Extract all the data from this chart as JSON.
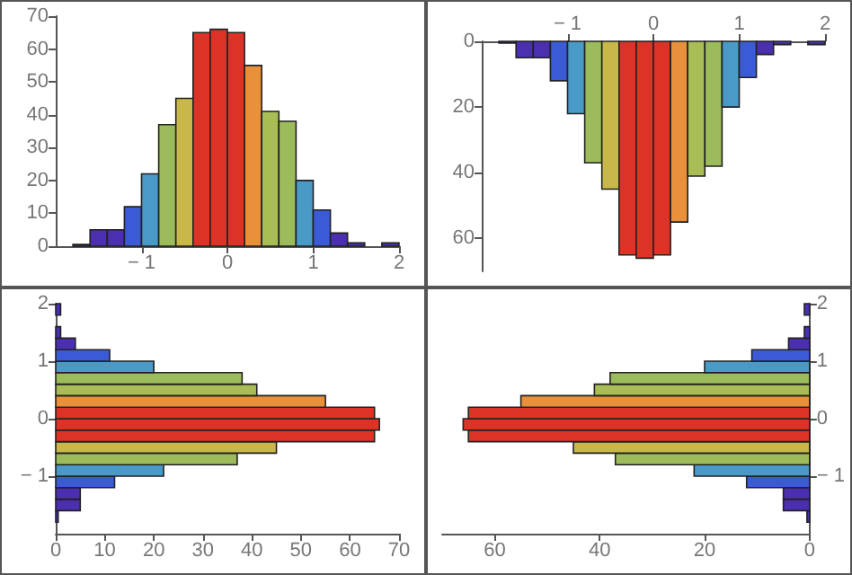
{
  "chart_data": [
    {
      "type": "histogram",
      "bins": [
        -2,
        -1.8,
        -1.6,
        -1.4,
        -1.2,
        -1,
        -0.8,
        -0.6,
        -0.4,
        -0.2,
        0,
        0.2,
        0.4,
        0.6,
        0.8,
        1,
        1.2,
        1.4,
        1.6,
        1.8,
        2
      ],
      "values": [
        0,
        0.5,
        5,
        5,
        12,
        22,
        37,
        45,
        65,
        66,
        65,
        55,
        41,
        38,
        20,
        11,
        4,
        1,
        0,
        1
      ],
      "colors": [
        null,
        "#4a2fb0",
        "#4a2fb0",
        "#4a2fb0",
        "#3b5bd6",
        "#4a9ac8",
        "#9cbb5a",
        "#c8b84a",
        "#dd3326",
        "#dd3326",
        "#dd3326",
        "#e8903a",
        "#a9bd55",
        "#9cbb5a",
        "#4a9ac8",
        "#3b5bd6",
        "#4a2fb0",
        "#4a2fb0",
        null,
        "#4a2fb0"
      ],
      "xlim": [
        -2,
        2
      ],
      "xticks": [
        {
          "value": -1,
          "label": "− 1"
        },
        0,
        1,
        2
      ],
      "ylim": [
        0,
        70
      ],
      "yticks": [
        0,
        10,
        20,
        30,
        40,
        50,
        60,
        70
      ]
    },
    {
      "type": "histogram",
      "bins": [
        -2,
        -1.8,
        -1.6,
        -1.4,
        -1.2,
        -1,
        -0.8,
        -0.6,
        -0.4,
        -0.2,
        0,
        0.2,
        0.4,
        0.6,
        0.8,
        1,
        1.2,
        1.4,
        1.6,
        1.8,
        2
      ],
      "values": [
        0,
        0.5,
        5,
        5,
        12,
        22,
        37,
        45,
        65,
        66,
        65,
        55,
        41,
        38,
        20,
        11,
        4,
        1,
        0,
        1
      ],
      "colors": [
        null,
        "#4a2fb0",
        "#4a2fb0",
        "#4a2fb0",
        "#3b5bd6",
        "#4a9ac8",
        "#9cbb5a",
        "#c8b84a",
        "#dd3326",
        "#dd3326",
        "#dd3326",
        "#e8903a",
        "#a9bd55",
        "#9cbb5a",
        "#4a9ac8",
        "#3b5bd6",
        "#4a2fb0",
        "#4a2fb0",
        null,
        "#4a2fb0"
      ],
      "xlim": [
        -2,
        2
      ],
      "xticks": [
        {
          "value": -1,
          "label": "− 1"
        },
        0,
        1,
        2
      ],
      "ylim": [
        70,
        0
      ],
      "yticks": [
        0,
        20,
        40,
        60
      ]
    },
    {
      "type": "histogram",
      "orientation": "horizontal",
      "bins": [
        -2,
        -1.8,
        -1.6,
        -1.4,
        -1.2,
        -1,
        -0.8,
        -0.6,
        -0.4,
        -0.2,
        0,
        0.2,
        0.4,
        0.6,
        0.8,
        1,
        1.2,
        1.4,
        1.6,
        1.8,
        2
      ],
      "values": [
        0,
        0.5,
        5,
        5,
        12,
        22,
        37,
        45,
        65,
        66,
        65,
        55,
        41,
        38,
        20,
        11,
        4,
        1,
        0,
        1
      ],
      "colors": [
        null,
        "#4a2fb0",
        "#4a2fb0",
        "#4a2fb0",
        "#3b5bd6",
        "#4a9ac8",
        "#9cbb5a",
        "#c8b84a",
        "#dd3326",
        "#dd3326",
        "#dd3326",
        "#e8903a",
        "#a9bd55",
        "#9cbb5a",
        "#4a9ac8",
        "#3b5bd6",
        "#4a2fb0",
        "#4a2fb0",
        null,
        "#4a2fb0"
      ],
      "xlim": [
        0,
        70
      ],
      "xticks": [
        0,
        10,
        20,
        30,
        40,
        50,
        60,
        70
      ],
      "ylim": [
        -2,
        2
      ],
      "yticks": [
        {
          "value": -1,
          "label": "− 1"
        },
        0,
        1,
        2
      ]
    },
    {
      "type": "histogram",
      "orientation": "horizontal",
      "bins": [
        -2,
        -1.8,
        -1.6,
        -1.4,
        -1.2,
        -1,
        -0.8,
        -0.6,
        -0.4,
        -0.2,
        0,
        0.2,
        0.4,
        0.6,
        0.8,
        1,
        1.2,
        1.4,
        1.6,
        1.8,
        2
      ],
      "values": [
        0,
        0.5,
        5,
        5,
        12,
        22,
        37,
        45,
        65,
        66,
        65,
        55,
        41,
        38,
        20,
        11,
        4,
        1,
        0,
        1
      ],
      "colors": [
        null,
        "#4a2fb0",
        "#4a2fb0",
        "#4a2fb0",
        "#3b5bd6",
        "#4a9ac8",
        "#9cbb5a",
        "#c8b84a",
        "#dd3326",
        "#dd3326",
        "#dd3326",
        "#e8903a",
        "#a9bd55",
        "#9cbb5a",
        "#4a9ac8",
        "#3b5bd6",
        "#4a2fb0",
        "#4a2fb0",
        null,
        "#4a2fb0"
      ],
      "xlim": [
        70,
        0
      ],
      "xticks": [
        0,
        20,
        40,
        60
      ],
      "ylim": [
        -2,
        2
      ],
      "yticks": [
        {
          "value": -1,
          "label": "− 1"
        },
        0,
        1,
        2
      ]
    }
  ]
}
